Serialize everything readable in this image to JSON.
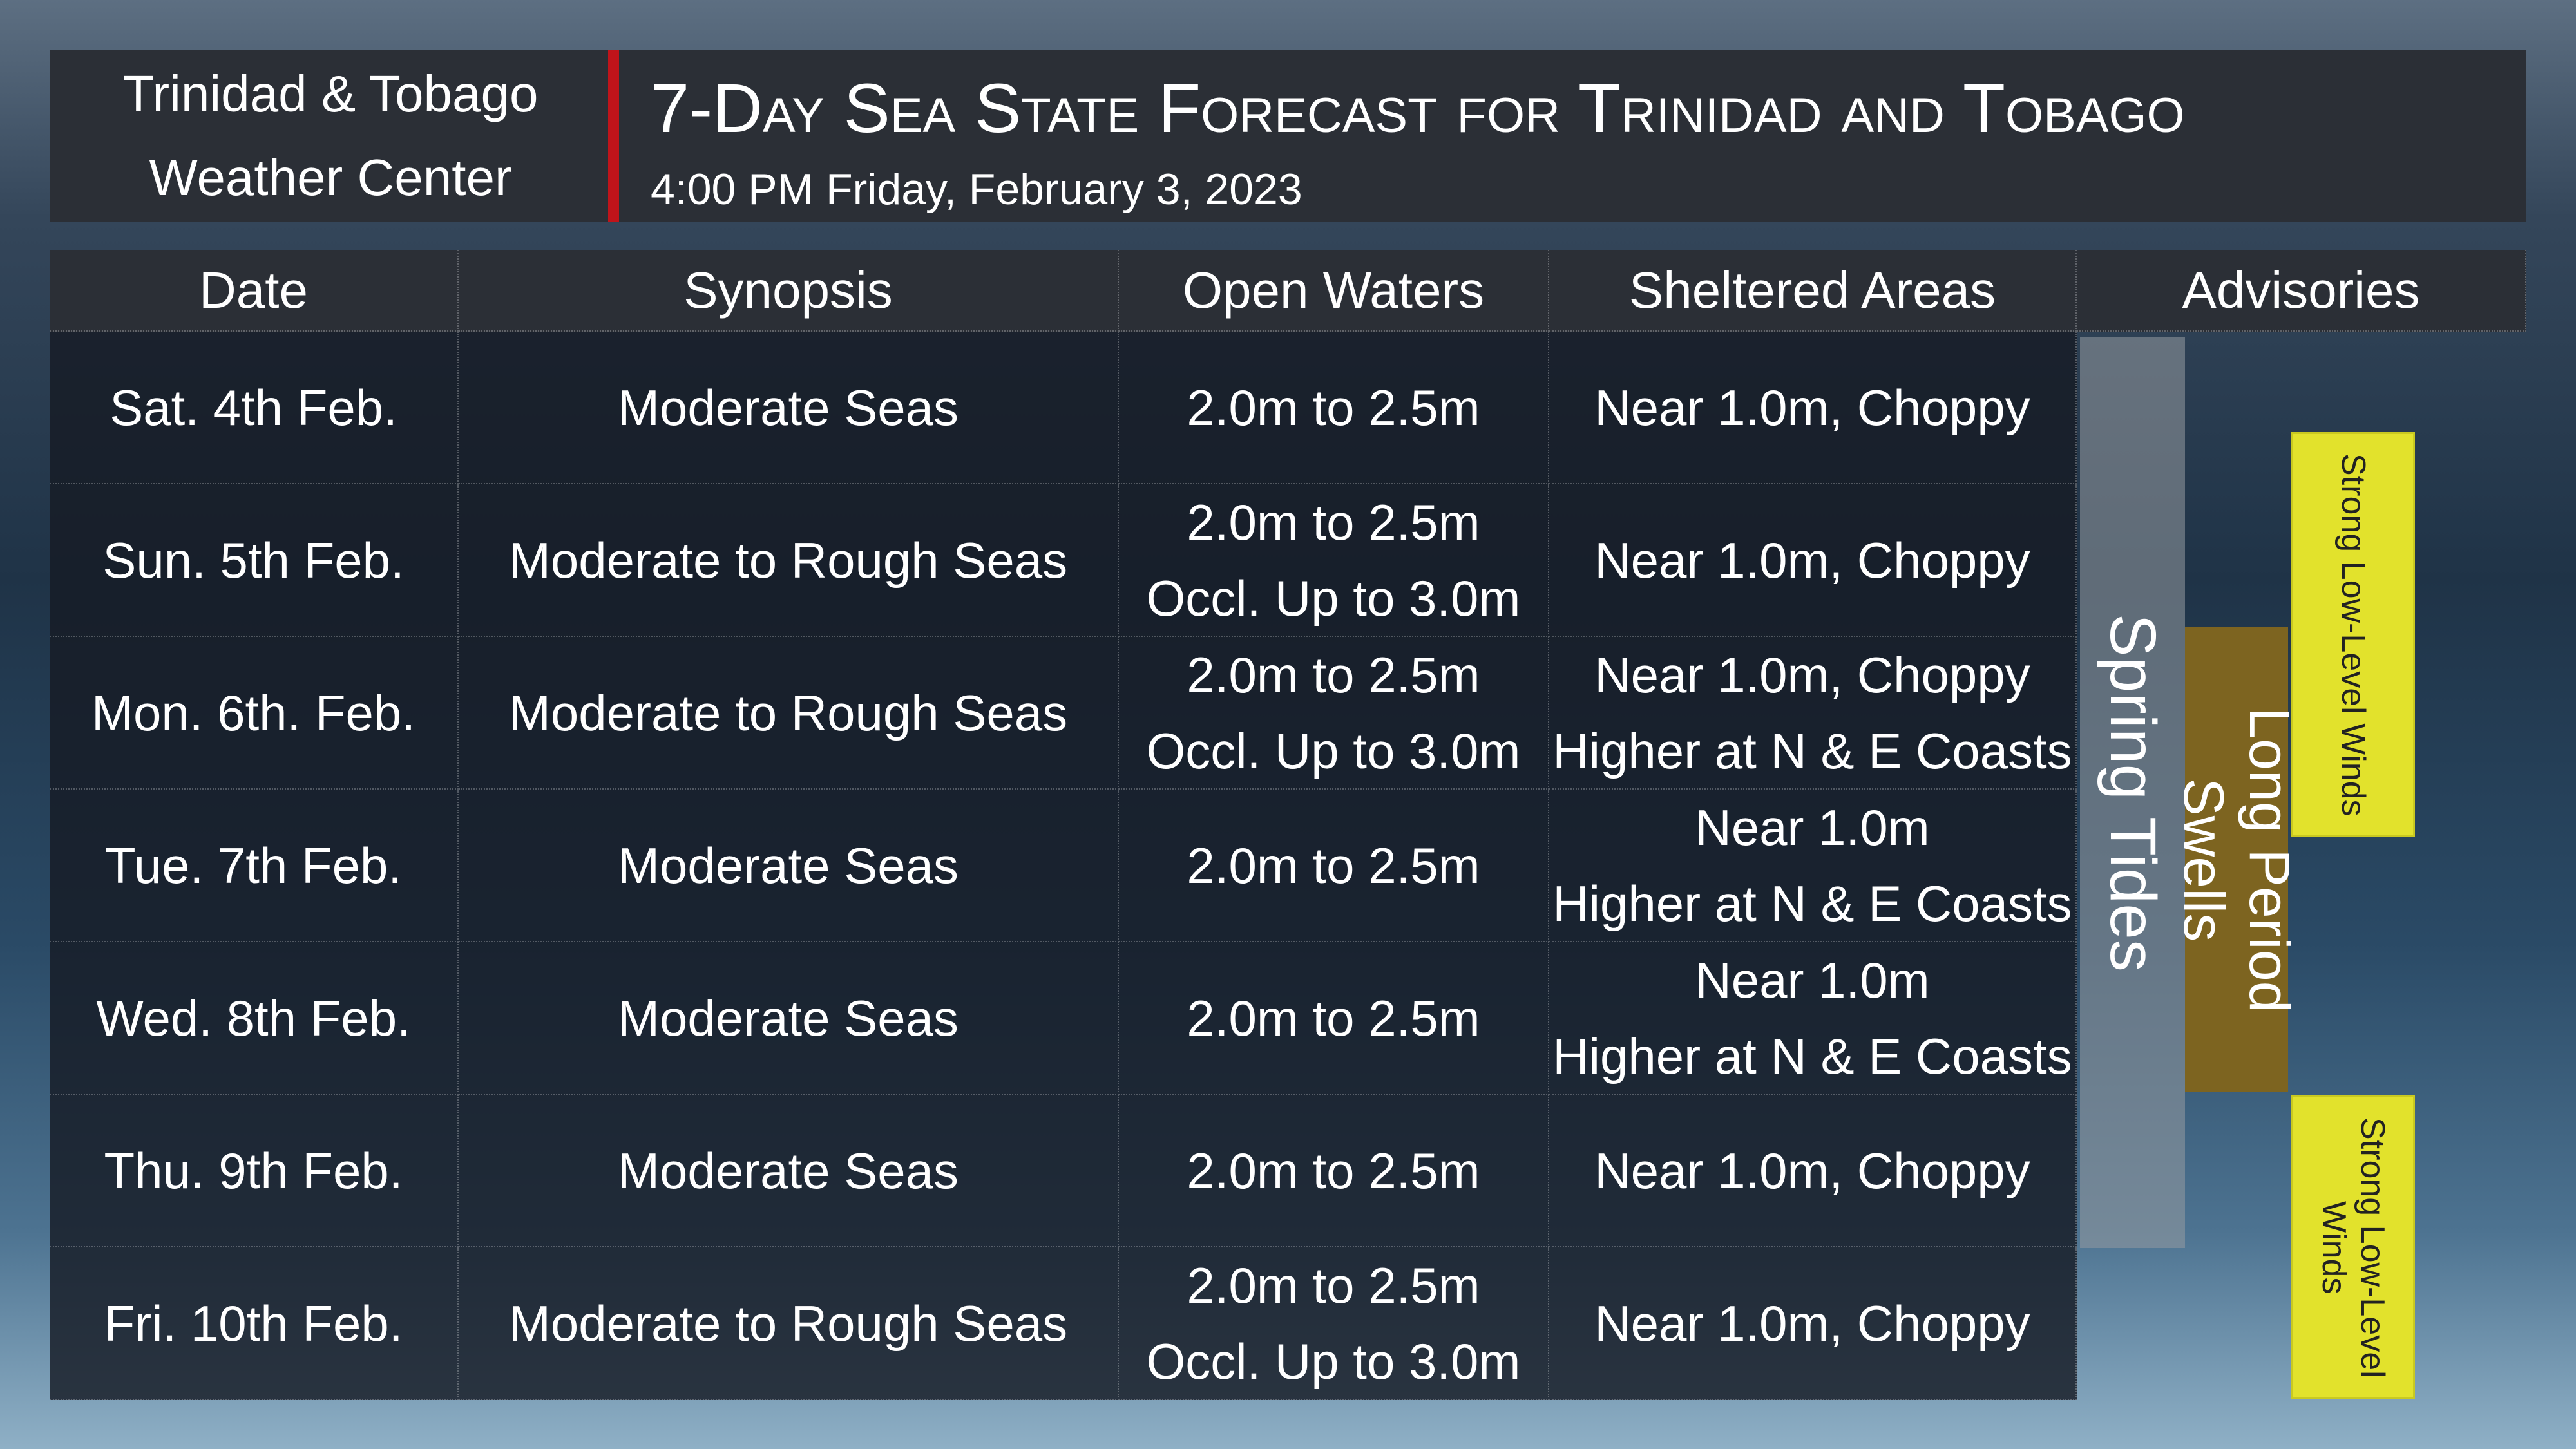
{
  "header": {
    "organization": [
      "Trinidad & Tobago",
      "Weather Center"
    ],
    "title": "7-Day Sea State Forecast for Trinidad and Tobago",
    "timestamp": "4:00 PM Friday, February 3, 2023"
  },
  "table": {
    "columns": [
      "Date",
      "Synopsis",
      "Open Waters",
      "Sheltered Areas",
      "Advisories"
    ],
    "rows": [
      [
        "Sat. 4th Feb.",
        "Moderate Seas",
        [
          "2.0m to 2.5m"
        ],
        [
          "Near 1.0m, Choppy"
        ]
      ],
      [
        "Sun. 5th Feb.",
        "Moderate to Rough Seas",
        [
          "2.0m to 2.5m",
          "Occl. Up to 3.0m"
        ],
        [
          "Near 1.0m, Choppy"
        ]
      ],
      [
        "Mon. 6th. Feb.",
        "Moderate to Rough Seas",
        [
          "2.0m to 2.5m",
          "Occl. Up to 3.0m"
        ],
        [
          "Near 1.0m, Choppy",
          "Higher at N & E Coasts"
        ]
      ],
      [
        "Tue. 7th Feb.",
        "Moderate Seas",
        [
          "2.0m to 2.5m"
        ],
        [
          "Near 1.0m",
          "Higher at N & E Coasts"
        ]
      ],
      [
        "Wed. 8th Feb.",
        "Moderate Seas",
        [
          "2.0m to 2.5m"
        ],
        [
          "Near 1.0m",
          "Higher at N & E Coasts"
        ]
      ],
      [
        "Thu. 9th Feb.",
        "Moderate Seas",
        [
          "2.0m to 2.5m"
        ],
        [
          "Near 1.0m, Choppy"
        ]
      ],
      [
        "Fri. 10th Feb.",
        "Moderate to Rough Seas",
        [
          "2.0m to 2.5m",
          "Occl. Up to 3.0m"
        ],
        [
          "Near 1.0m, Choppy"
        ]
      ]
    ]
  },
  "advisories": [
    "Spring Tides",
    "Long Period Swells",
    "Strong Low-Level Winds",
    "Strong Low-Level Winds"
  ]
}
